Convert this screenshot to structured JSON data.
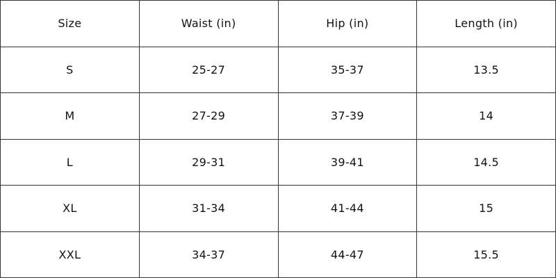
{
  "table": {
    "header": [
      "Size",
      "Waist (in)",
      "Hip (in)",
      "Length (in)"
    ],
    "rows": [
      [
        "S",
        "25-27",
        "35-37",
        "13.5"
      ],
      [
        "M",
        "27-29",
        "37-39",
        "14"
      ],
      [
        "L",
        "29-31",
        "39-41",
        "14.5"
      ],
      [
        "XL",
        "31-34",
        "41-44",
        "15"
      ],
      [
        "XXL",
        "34-37",
        "44-47",
        "15.5"
      ]
    ]
  }
}
